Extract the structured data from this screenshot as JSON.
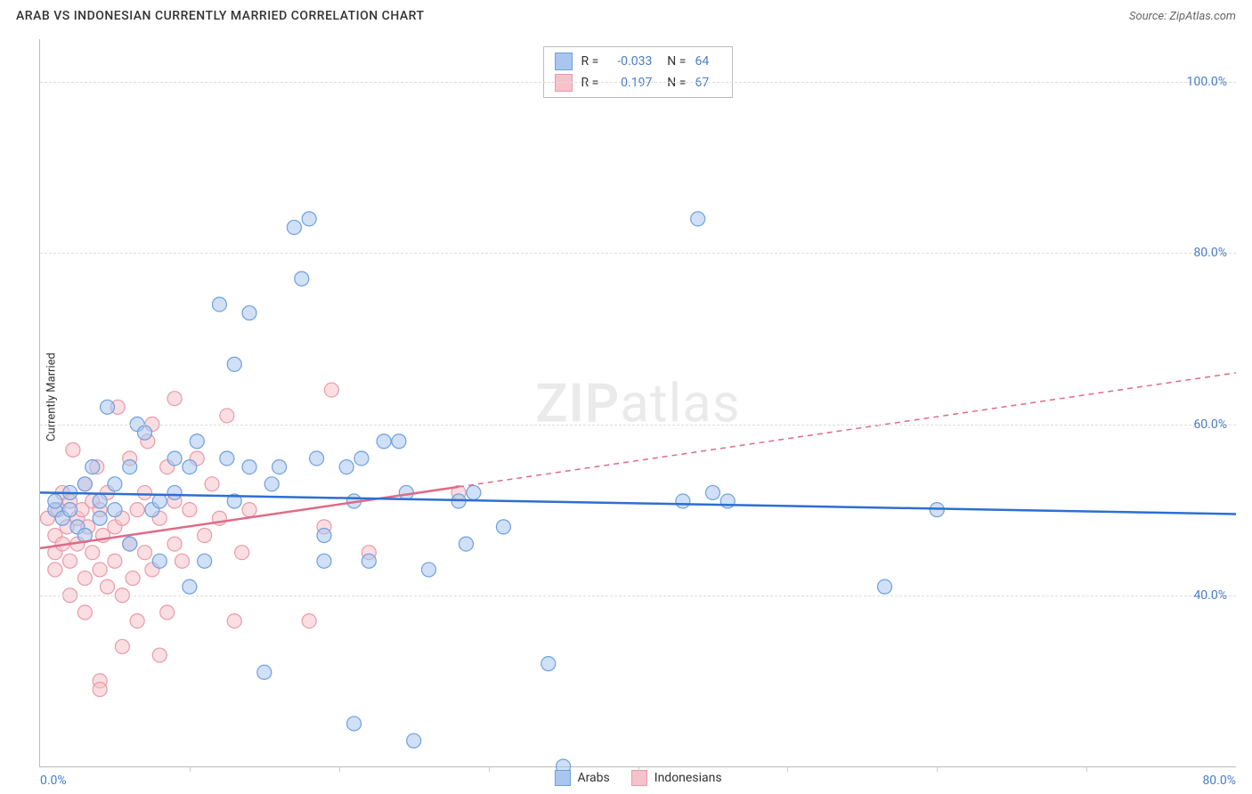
{
  "title": "ARAB VS INDONESIAN CURRENTLY MARRIED CORRELATION CHART",
  "source": "Source: ZipAtlas.com",
  "chart": {
    "type": "scatter",
    "y_axis_label": "Currently Married",
    "xlim": [
      0,
      80
    ],
    "ylim": [
      20,
      105
    ],
    "x_ticks": [
      0,
      80
    ],
    "x_tick_labels": [
      "0.0%",
      "80.0%"
    ],
    "y_ticks": [
      40,
      60,
      80,
      100
    ],
    "y_tick_labels": [
      "40.0%",
      "60.0%",
      "80.0%",
      "100.0%"
    ],
    "x_minor_ticks": [
      10,
      20,
      30,
      40,
      50,
      60,
      70
    ],
    "grid_color": "#dddddd",
    "axis_color": "#bbbbbb",
    "tick_label_color": "#4a7dc9",
    "background_color": "#ffffff",
    "marker_radius": 8,
    "marker_opacity": 0.55,
    "line_width": 2.5,
    "watermark_text": "ZIPatlas",
    "series": [
      {
        "name": "Arabs",
        "color_fill": "#a9c7ee",
        "color_stroke": "#6ea0dd",
        "line_color": "#2d6fd1",
        "r": "-0.033",
        "n": "64",
        "regression": {
          "x1": 0,
          "y1": 52,
          "x2": 80,
          "y2": 49.5
        },
        "dashed_after_x": null,
        "points": [
          [
            1,
            50
          ],
          [
            1,
            51
          ],
          [
            1.5,
            49
          ],
          [
            2,
            52
          ],
          [
            2,
            50
          ],
          [
            2.5,
            48
          ],
          [
            3,
            53
          ],
          [
            3,
            47
          ],
          [
            3.5,
            55
          ],
          [
            4,
            51
          ],
          [
            4,
            49
          ],
          [
            4.5,
            62
          ],
          [
            5,
            50
          ],
          [
            5,
            53
          ],
          [
            6,
            55
          ],
          [
            6,
            46
          ],
          [
            6.5,
            60
          ],
          [
            7,
            59
          ],
          [
            7.5,
            50
          ],
          [
            8,
            51
          ],
          [
            8,
            44
          ],
          [
            9,
            52
          ],
          [
            9,
            56
          ],
          [
            10,
            55
          ],
          [
            10,
            41
          ],
          [
            10.5,
            58
          ],
          [
            11,
            44
          ],
          [
            12,
            74
          ],
          [
            12.5,
            56
          ],
          [
            13,
            51
          ],
          [
            13,
            67
          ],
          [
            14,
            73
          ],
          [
            14,
            55
          ],
          [
            15,
            31
          ],
          [
            15.5,
            53
          ],
          [
            16,
            55
          ],
          [
            17,
            83
          ],
          [
            17.5,
            77
          ],
          [
            18,
            84
          ],
          [
            18.5,
            56
          ],
          [
            19,
            47
          ],
          [
            19,
            44
          ],
          [
            20.5,
            55
          ],
          [
            21,
            51
          ],
          [
            21,
            25
          ],
          [
            21.5,
            56
          ],
          [
            22,
            44
          ],
          [
            23,
            58
          ],
          [
            24,
            58
          ],
          [
            24.5,
            52
          ],
          [
            25,
            23
          ],
          [
            26,
            43
          ],
          [
            28,
            51
          ],
          [
            28.5,
            46
          ],
          [
            29,
            52
          ],
          [
            31,
            48
          ],
          [
            34,
            32
          ],
          [
            35,
            20
          ],
          [
            43,
            51
          ],
          [
            44,
            84
          ],
          [
            45,
            52
          ],
          [
            46,
            51
          ],
          [
            60,
            50
          ],
          [
            56.5,
            41
          ]
        ]
      },
      {
        "name": "Indonesians",
        "color_fill": "#f5c2cb",
        "color_stroke": "#ea9aa9",
        "line_color": "#e06a87",
        "r": "0.197",
        "n": "67",
        "regression": {
          "x1": 0,
          "y1": 45.5,
          "x2": 80,
          "y2": 66
        },
        "dashed_after_x": 28,
        "points": [
          [
            0.5,
            49
          ],
          [
            1,
            47
          ],
          [
            1,
            45
          ],
          [
            1,
            43
          ],
          [
            1.2,
            50
          ],
          [
            1.5,
            52
          ],
          [
            1.5,
            46
          ],
          [
            1.8,
            48
          ],
          [
            2,
            51
          ],
          [
            2,
            44
          ],
          [
            2,
            40
          ],
          [
            2.2,
            57
          ],
          [
            2.5,
            49
          ],
          [
            2.5,
            46
          ],
          [
            2.8,
            50
          ],
          [
            3,
            53
          ],
          [
            3,
            42
          ],
          [
            3,
            38
          ],
          [
            3.2,
            48
          ],
          [
            3.5,
            51
          ],
          [
            3.5,
            45
          ],
          [
            3.8,
            55
          ],
          [
            4,
            50
          ],
          [
            4,
            43
          ],
          [
            4,
            30
          ],
          [
            4.2,
            47
          ],
          [
            4.5,
            52
          ],
          [
            4.5,
            41
          ],
          [
            5,
            48
          ],
          [
            5,
            44
          ],
          [
            5.2,
            62
          ],
          [
            5.5,
            49
          ],
          [
            5.5,
            40
          ],
          [
            5.5,
            34
          ],
          [
            6,
            46
          ],
          [
            6,
            56
          ],
          [
            6.2,
            42
          ],
          [
            6.5,
            50
          ],
          [
            6.5,
            37
          ],
          [
            7,
            52
          ],
          [
            7,
            45
          ],
          [
            7.2,
            58
          ],
          [
            7.5,
            60
          ],
          [
            7.5,
            43
          ],
          [
            8,
            49
          ],
          [
            8,
            33
          ],
          [
            8.5,
            55
          ],
          [
            8.5,
            38
          ],
          [
            9,
            51
          ],
          [
            9,
            46
          ],
          [
            9,
            63
          ],
          [
            9.5,
            44
          ],
          [
            10,
            50
          ],
          [
            10.5,
            56
          ],
          [
            11,
            47
          ],
          [
            11.5,
            53
          ],
          [
            12,
            49
          ],
          [
            12.5,
            61
          ],
          [
            13,
            37
          ],
          [
            13.5,
            45
          ],
          [
            14,
            50
          ],
          [
            18,
            37
          ],
          [
            19,
            48
          ],
          [
            19.5,
            64
          ],
          [
            22,
            45
          ],
          [
            28,
            52
          ],
          [
            4,
            29
          ]
        ]
      }
    ]
  },
  "bottom_legend": {
    "items": [
      {
        "label": "Arabs",
        "fill": "#a9c7ee",
        "stroke": "#6ea0dd"
      },
      {
        "label": "Indonesians",
        "fill": "#f5c2cb",
        "stroke": "#ea9aa9"
      }
    ]
  }
}
